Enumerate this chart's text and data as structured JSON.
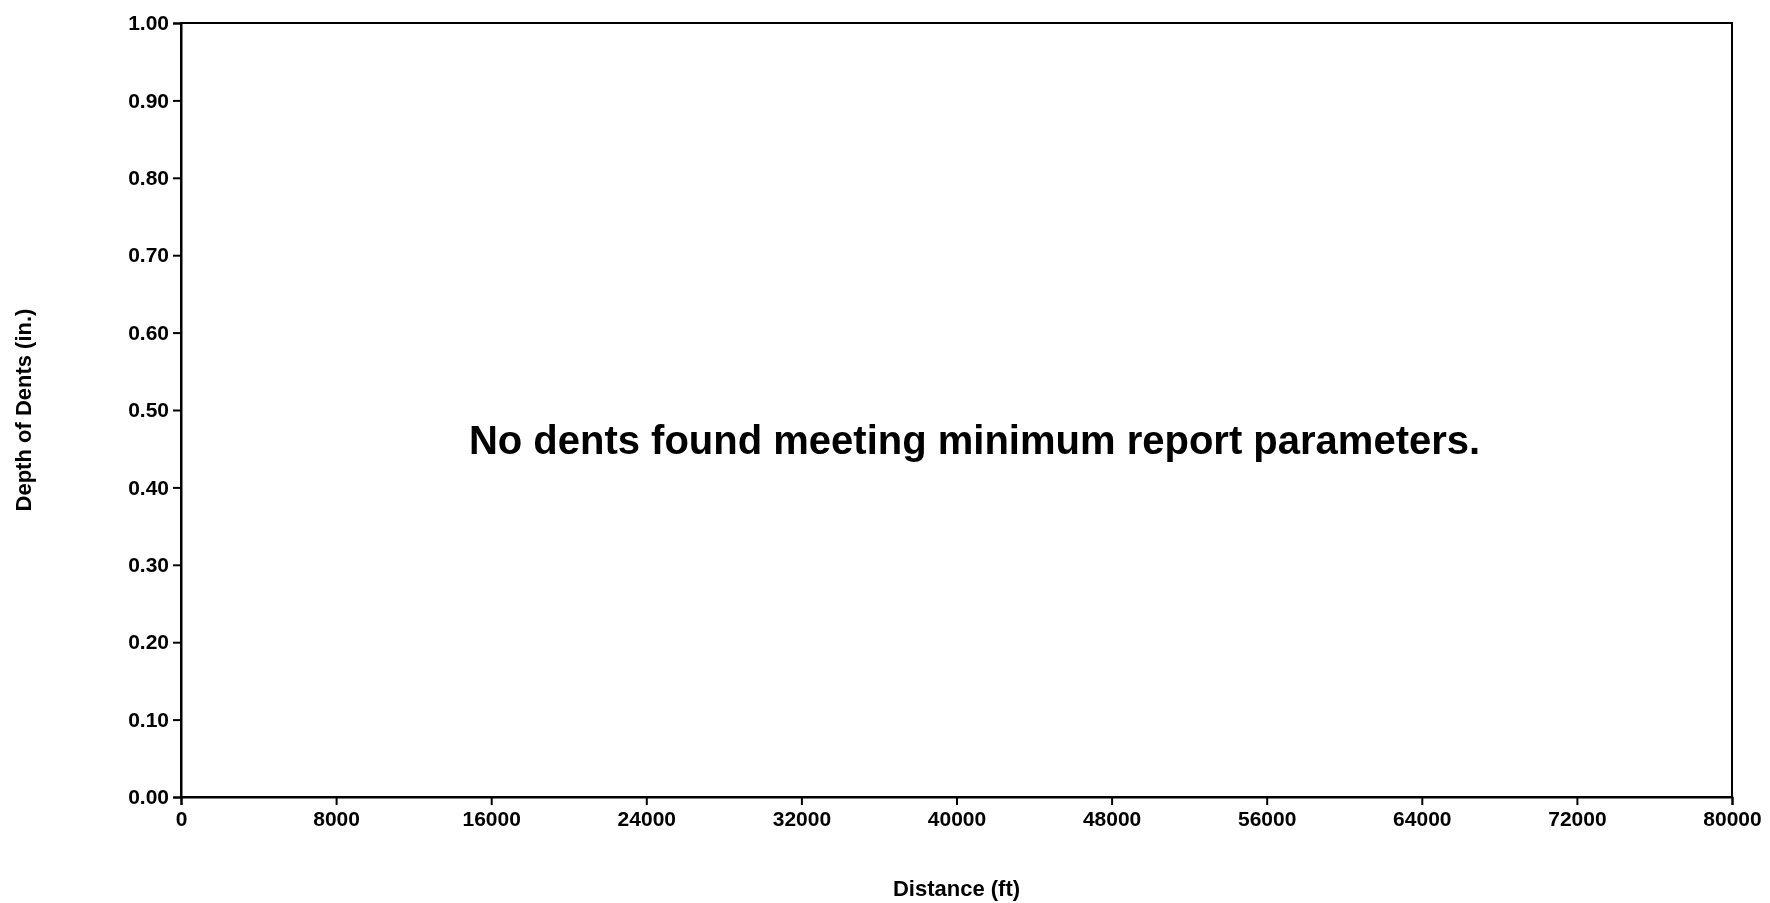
{
  "chart_data": {
    "type": "scatter",
    "xlabel": "Distance (ft)",
    "ylabel": "Depth of Dents (in.)",
    "xlim": [
      0,
      80000
    ],
    "xticks": [
      0,
      8000,
      16000,
      24000,
      32000,
      40000,
      48000,
      56000,
      64000,
      72000,
      80000
    ],
    "ylim": [
      0,
      1
    ],
    "yticks": [
      {
        "value": 0,
        "label": "0.00"
      },
      {
        "value": 0.1,
        "label": "0.10"
      },
      {
        "value": 0.2,
        "label": "0.20"
      },
      {
        "value": 0.3,
        "label": "0.30"
      },
      {
        "value": 0.4,
        "label": "0.40"
      },
      {
        "value": 0.5,
        "label": "0.50"
      },
      {
        "value": 0.6,
        "label": "0.60"
      },
      {
        "value": 0.7,
        "label": "0.70"
      },
      {
        "value": 0.8,
        "label": "0.80"
      },
      {
        "value": 0.9,
        "label": "0.90"
      },
      {
        "value": 1,
        "label": "1.00"
      }
    ],
    "annotations": [
      "No dents found meeting minimum report parameters."
    ]
  }
}
